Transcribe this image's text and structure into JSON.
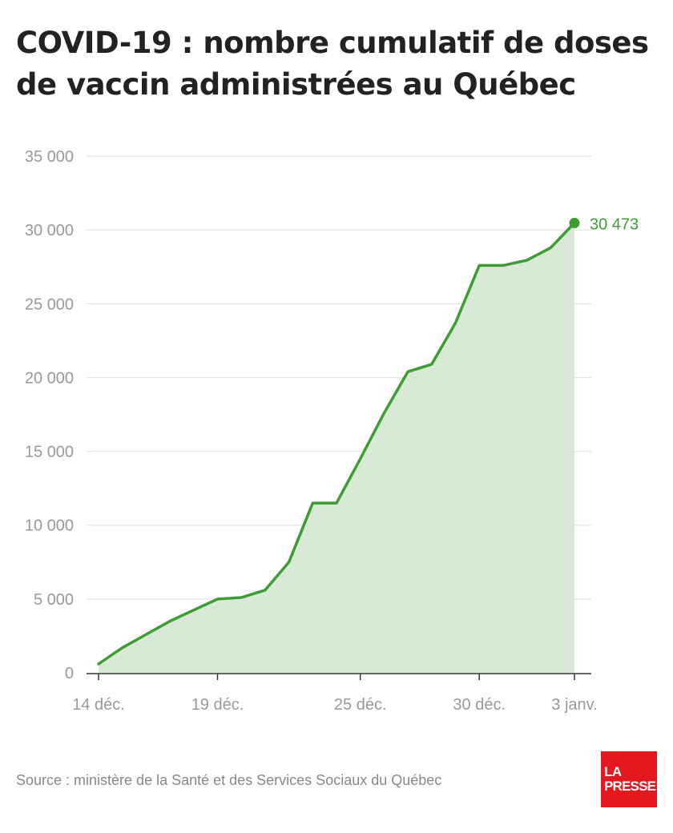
{
  "title": "COVID-19 : nombre cumulatif de doses de vaccin administrées au Québec",
  "source": "Source : ministère de la Santé et des Services Sociaux du Québec",
  "logo": {
    "line1": "LA",
    "line2": "PRESSE"
  },
  "colors": {
    "line": "#3f9c35",
    "fill": "#d8ead5",
    "grid": "#e3e3e3",
    "axis_text": "#999999",
    "label": "#3f9c35",
    "logo_bg": "#e5171f"
  },
  "chart_data": {
    "type": "area",
    "title": "COVID-19 : nombre cumulatif de doses de vaccin administrées au Québec",
    "xlabel": "",
    "ylabel": "",
    "ylim": [
      0,
      35000
    ],
    "yticks": [
      0,
      5000,
      10000,
      15000,
      20000,
      25000,
      30000,
      35000
    ],
    "ytick_labels": [
      "0",
      "5 000",
      "10 000",
      "15 000",
      "20 000",
      "25 000",
      "30 000",
      "35 000"
    ],
    "xticks": [
      {
        "date": "2020-12-14",
        "label": "14 déc."
      },
      {
        "date": "2020-12-19",
        "label": "19 déc."
      },
      {
        "date": "2020-12-25",
        "label": "25 déc."
      },
      {
        "date": "2020-12-30",
        "label": "30 déc."
      },
      {
        "date": "2021-01-03",
        "label": "3 janv."
      }
    ],
    "grid": true,
    "series": [
      {
        "points": [
          {
            "x": "2020-12-14",
            "y": 600
          },
          {
            "x": "2020-12-15",
            "y": 1700
          },
          {
            "x": "2020-12-16",
            "y": 2600
          },
          {
            "x": "2020-12-17",
            "y": 3500
          },
          {
            "x": "2020-12-18",
            "y": 4250
          },
          {
            "x": "2020-12-19",
            "y": 5000
          },
          {
            "x": "2020-12-20",
            "y": 5100
          },
          {
            "x": "2020-12-21",
            "y": 5600
          },
          {
            "x": "2020-12-22",
            "y": 7500
          },
          {
            "x": "2020-12-23",
            "y": 11500
          },
          {
            "x": "2020-12-24",
            "y": 11500
          },
          {
            "x": "2020-12-25",
            "y": 14500
          },
          {
            "x": "2020-12-26",
            "y": 17600
          },
          {
            "x": "2020-12-27",
            "y": 20400
          },
          {
            "x": "2020-12-28",
            "y": 20900
          },
          {
            "x": "2020-12-29",
            "y": 23700
          },
          {
            "x": "2020-12-30",
            "y": 27600
          },
          {
            "x": "2020-12-31",
            "y": 27600
          },
          {
            "x": "2021-01-01",
            "y": 27950
          },
          {
            "x": "2021-01-02",
            "y": 28800
          },
          {
            "x": "2021-01-03",
            "y": 30473
          }
        ]
      }
    ],
    "annotations": [
      {
        "x": "2021-01-03",
        "y": 30473,
        "text": "30 473"
      }
    ]
  }
}
